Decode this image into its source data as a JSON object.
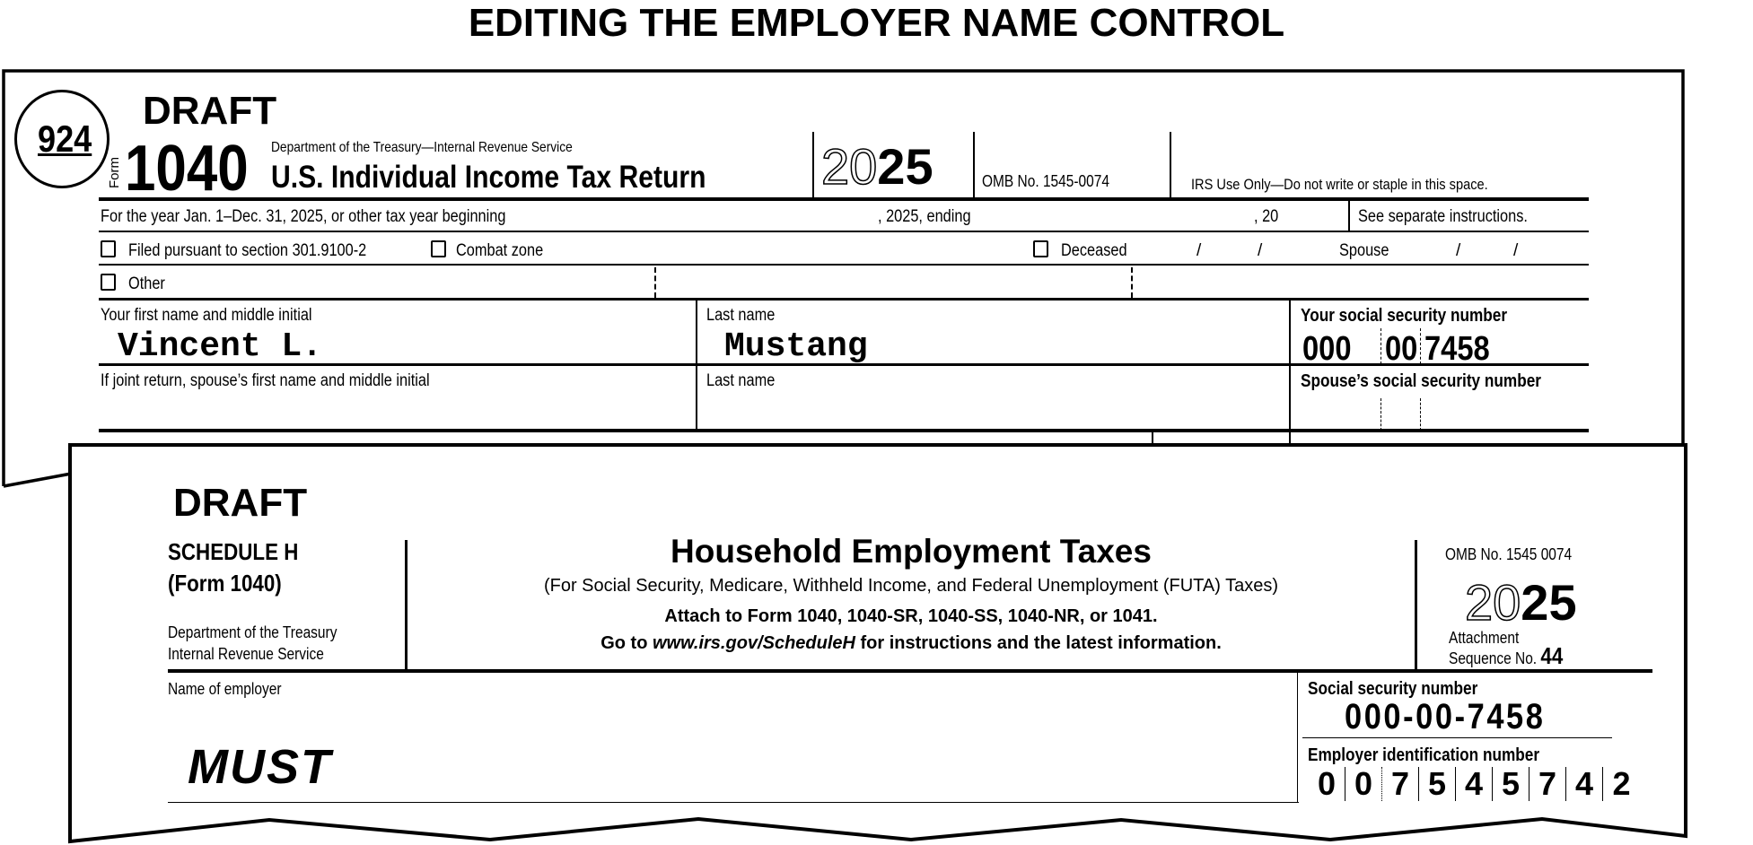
{
  "heading": "EDITING THE EMPLOYER NAME CONTROL",
  "form1040": {
    "stamp_number": "924",
    "draft_label": "DRAFT",
    "form_word": "Form",
    "form_number": "1040",
    "department": "Department of the Treasury—Internal Revenue Service",
    "title": "U.S. Individual Income Tax Return",
    "year_outline": "20",
    "year_bold": "25",
    "omb": "OMB No. 1545-0074",
    "irs_use": "IRS Use Only—Do not write or staple in this space.",
    "tax_year_text": "For the year Jan. 1–Dec. 31, 2025, or other tax year beginning",
    "ending_text": ", 2025, ending",
    "twenty_text": ", 20",
    "see_instructions": "See separate instructions.",
    "checkboxes": {
      "filed_pursuant": "Filed pursuant to section 301.9100-2",
      "combat_zone": "Combat zone",
      "deceased": "Deceased",
      "other": "Other"
    },
    "slash": "/",
    "spouse_label": "Spouse",
    "first_name_label": "Your first name and middle initial",
    "last_name_label": "Last name",
    "ssn_label": "Your social security number",
    "first_name_value": "Vincent L.",
    "last_name_value": "Mustang",
    "ssn_parts": [
      "000",
      "00",
      "7458"
    ],
    "spouse_first_name_label": "If joint return, spouse’s first name and middle initial",
    "spouse_last_name_label": "Last name",
    "spouse_ssn_label": "Spouse’s social security number"
  },
  "scheduleH": {
    "draft_label": "DRAFT",
    "schedule": "SCHEDULE H",
    "form_ref": "(Form 1040)",
    "dept_line1": "Department of the Treasury",
    "dept_line2": "Internal Revenue Service",
    "title": "Household Employment Taxes",
    "subtitle": "(For Social Security, Medicare, Withheld Income, and Federal Unemployment (FUTA) Taxes)",
    "attach": "Attach to Form 1040, 1040-SR, 1040-SS, 1040-NR, or 1041.",
    "goto_prefix": "Go to ",
    "goto_url": "www.irs.gov/ScheduleH",
    "goto_suffix": " for instructions and the latest information.",
    "omb": "OMB No. 1545 0074",
    "year_outline": "20",
    "year_bold": "25",
    "attachment": "Attachment",
    "sequence_label": "Sequence No.",
    "sequence_number": "44",
    "employer_name_label": "Name of employer",
    "employer_name_value": "MUST",
    "ssn_label": "Social security number",
    "ssn_value": "000-00-7458",
    "ein_label": "Employer identification number",
    "ein_digits": [
      "0",
      "0",
      "7",
      "5",
      "4",
      "5",
      "7",
      "4",
      "2"
    ]
  }
}
